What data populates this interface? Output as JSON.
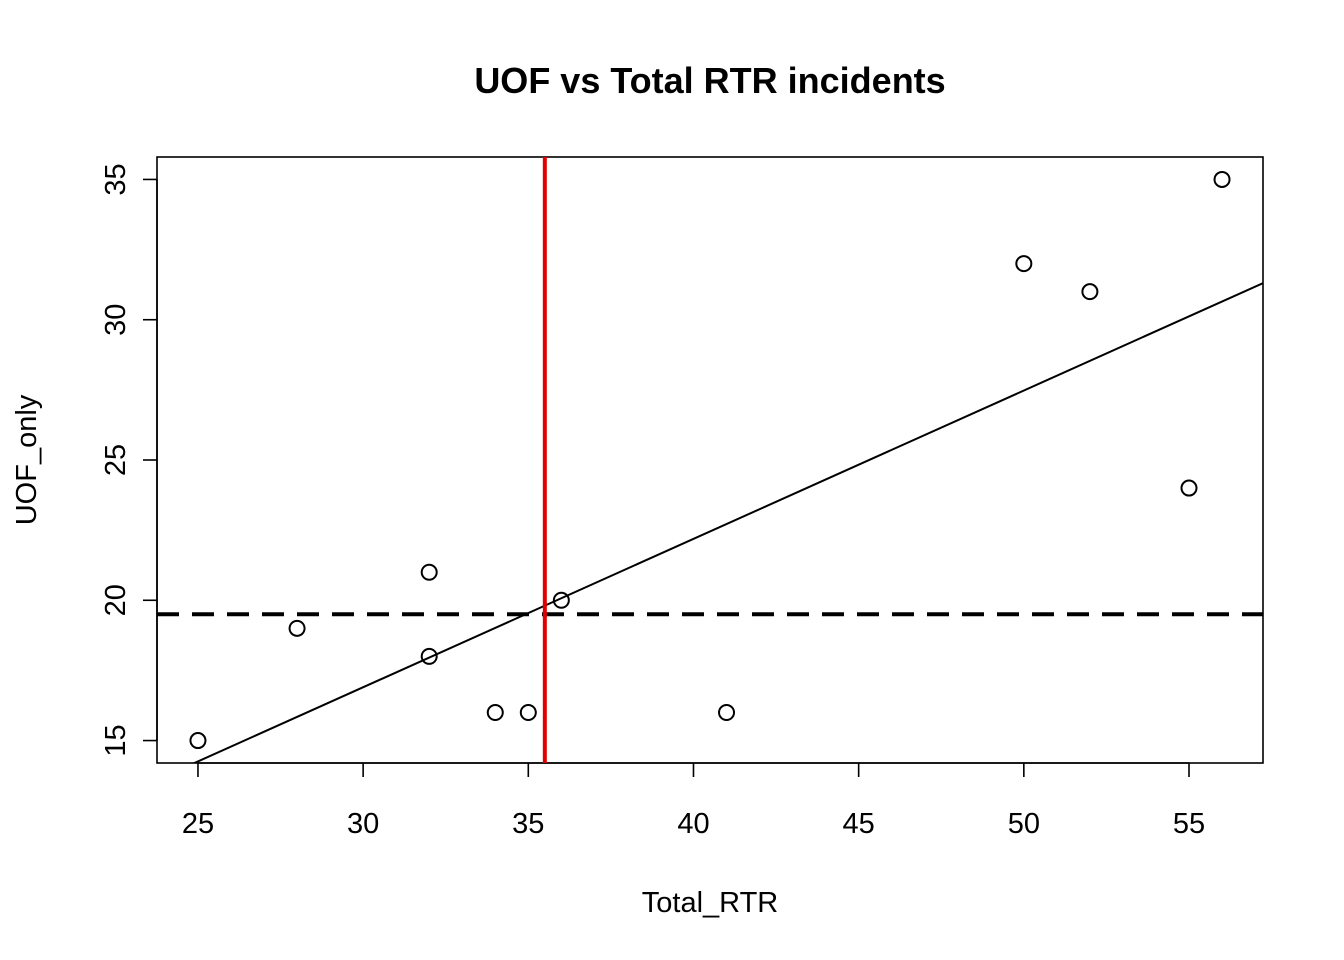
{
  "chart_data": {
    "type": "scatter",
    "title": "UOF vs Total RTR incidents",
    "xlabel": "Total_RTR",
    "ylabel": "UOF_only",
    "xlim": [
      23.76,
      57.24
    ],
    "ylim": [
      14.2,
      35.8
    ],
    "x_ticks": [
      25,
      30,
      35,
      40,
      45,
      50,
      55
    ],
    "y_ticks": [
      15,
      20,
      25,
      30,
      35
    ],
    "points": [
      {
        "x": 25,
        "y": 15
      },
      {
        "x": 28,
        "y": 19
      },
      {
        "x": 32,
        "y": 21
      },
      {
        "x": 32,
        "y": 18
      },
      {
        "x": 34,
        "y": 16
      },
      {
        "x": 35,
        "y": 16
      },
      {
        "x": 36,
        "y": 20
      },
      {
        "x": 41,
        "y": 16
      },
      {
        "x": 50,
        "y": 32
      },
      {
        "x": 52,
        "y": 31
      },
      {
        "x": 55,
        "y": 24
      },
      {
        "x": 56,
        "y": 35
      }
    ],
    "regression_line": {
      "intercept": 1.036,
      "slope": 0.5288,
      "color": "#000000"
    },
    "hline": {
      "y": 19.5,
      "style": "dashed",
      "color": "#000000"
    },
    "vline": {
      "x": 35.5,
      "color": "#e00000"
    },
    "grid": false,
    "legend": "none"
  }
}
